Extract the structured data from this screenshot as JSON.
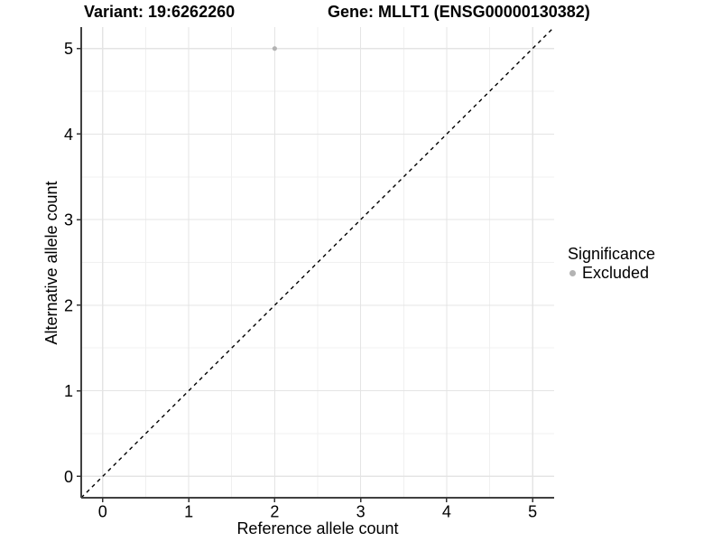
{
  "header": {
    "variant_title": "Variant: 19:6262260",
    "gene_title": "Gene: MLLT1 (ENSG00000130382)"
  },
  "chart_data": {
    "type": "scatter",
    "xlabel": "Reference allele count",
    "ylabel": "Alternative allele count",
    "xlim": [
      -0.25,
      5.25
    ],
    "ylim": [
      -0.25,
      5.25
    ],
    "xticks": [
      0,
      1,
      2,
      3,
      4,
      5
    ],
    "yticks": [
      0,
      1,
      2,
      3,
      4,
      5
    ],
    "grid": "major and minor gridlines on white panel",
    "points": [
      {
        "x": 2,
        "y": 5,
        "significance": "Excluded"
      }
    ],
    "reference_line": {
      "equation": "y = x",
      "style": "dashed",
      "from": [
        -0.25,
        -0.25
      ],
      "to": [
        5.25,
        5.25
      ],
      "color": "#000000"
    },
    "legend": {
      "title": "Significance",
      "position": "right",
      "items": [
        {
          "label": "Excluded",
          "marker": "circle",
          "color": "#b3b3b3"
        }
      ]
    },
    "colors": {
      "point": "#b3b3b3",
      "grid_major": "#e4e4e4",
      "grid_minor": "#f0f0f0",
      "axis_line": "#404040",
      "tick_mark": "#333333",
      "tick_text": "#000000",
      "background": "#ffffff"
    }
  }
}
